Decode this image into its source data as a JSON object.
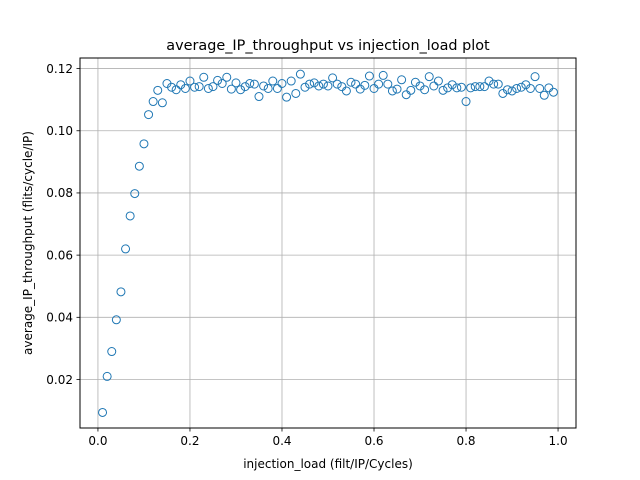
{
  "chart_data": {
    "type": "scatter",
    "title": "average_IP_throughput vs injection_load plot",
    "xlabel": "injection_load (filt/IP/Cycles)",
    "ylabel": "average_IP_throughput (flits/cycle/IP)",
    "xlim": [
      -0.039,
      1.039
    ],
    "ylim": [
      0.0044,
      0.1234
    ],
    "xticks": [
      0.0,
      0.2,
      0.4,
      0.6,
      0.8,
      1.0
    ],
    "xtick_labels": [
      "0.0",
      "0.2",
      "0.4",
      "0.6",
      "0.8",
      "1.0"
    ],
    "yticks": [
      0.02,
      0.04,
      0.06,
      0.08,
      0.1,
      0.12
    ],
    "ytick_labels": [
      "0.02",
      "0.04",
      "0.06",
      "0.08",
      "0.10",
      "0.12"
    ],
    "grid": true,
    "marker": "hollow-circle",
    "marker_color": "#1f77b4",
    "series": [
      {
        "x": [
          0.01,
          0.02,
          0.03,
          0.04,
          0.05,
          0.06,
          0.07,
          0.08,
          0.09,
          0.1,
          0.11,
          0.12,
          0.13,
          0.14,
          0.15,
          0.16,
          0.17,
          0.18,
          0.19,
          0.2,
          0.21,
          0.22,
          0.23,
          0.24,
          0.25,
          0.26,
          0.27,
          0.28,
          0.29,
          0.3,
          0.31,
          0.32,
          0.33,
          0.34,
          0.35,
          0.36,
          0.37,
          0.38,
          0.39,
          0.4,
          0.41,
          0.42,
          0.43,
          0.44,
          0.45,
          0.46,
          0.47,
          0.48,
          0.49,
          0.5,
          0.51,
          0.52,
          0.53,
          0.54,
          0.55,
          0.56,
          0.57,
          0.58,
          0.59,
          0.6,
          0.61,
          0.62,
          0.63,
          0.64,
          0.65,
          0.66,
          0.67,
          0.68,
          0.69,
          0.7,
          0.71,
          0.72,
          0.73,
          0.74,
          0.75,
          0.76,
          0.77,
          0.78,
          0.79,
          0.8,
          0.81,
          0.82,
          0.83,
          0.84,
          0.85,
          0.86,
          0.87,
          0.88,
          0.89,
          0.9,
          0.91,
          0.92,
          0.93,
          0.94,
          0.95,
          0.96,
          0.97,
          0.98,
          0.99
        ],
        "y": [
          0.0094,
          0.021,
          0.029,
          0.0392,
          0.0482,
          0.062,
          0.0726,
          0.0798,
          0.0886,
          0.0958,
          0.1052,
          0.1094,
          0.113,
          0.109,
          0.1152,
          0.114,
          0.1132,
          0.1148,
          0.1136,
          0.116,
          0.114,
          0.1142,
          0.1172,
          0.1136,
          0.1142,
          0.1162,
          0.1152,
          0.1172,
          0.1134,
          0.1154,
          0.1132,
          0.1142,
          0.1152,
          0.115,
          0.111,
          0.1144,
          0.1136,
          0.116,
          0.1136,
          0.1152,
          0.1108,
          0.116,
          0.112,
          0.1182,
          0.114,
          0.115,
          0.1154,
          0.1144,
          0.115,
          0.1144,
          0.117,
          0.115,
          0.1142,
          0.1128,
          0.1156,
          0.115,
          0.1134,
          0.1146,
          0.1176,
          0.1136,
          0.115,
          0.1178,
          0.115,
          0.1128,
          0.1134,
          0.1164,
          0.1116,
          0.113,
          0.1156,
          0.1144,
          0.1132,
          0.1174,
          0.1144,
          0.116,
          0.113,
          0.1138,
          0.1148,
          0.1138,
          0.114,
          0.1094,
          0.1138,
          0.1142,
          0.1142,
          0.1142,
          0.116,
          0.115,
          0.115,
          0.112,
          0.1132,
          0.1128,
          0.1136,
          0.114,
          0.1148,
          0.1136,
          0.1174,
          0.1136,
          0.1114,
          0.1138,
          0.1124
        ]
      }
    ]
  }
}
